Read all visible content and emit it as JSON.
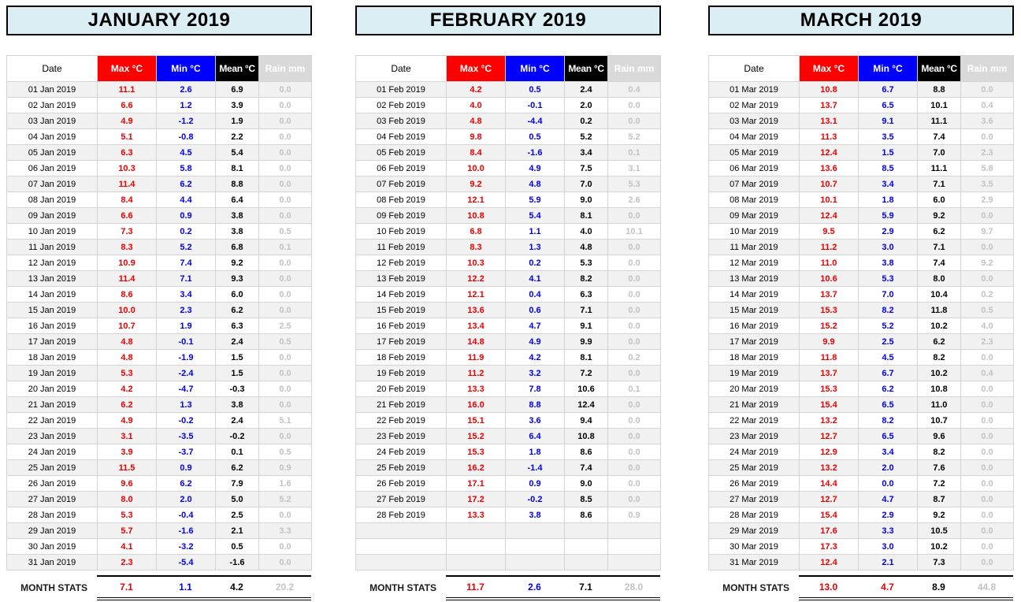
{
  "columns": [
    "Date",
    "Max °C",
    "Min °C",
    "Mean °C",
    "Rain mm"
  ],
  "colors": {
    "max_header_bg": "#FE0000",
    "min_header_bg": "#0000FE",
    "mean_header_bg": "#000000",
    "rain_header_bg": "#D9D9D9",
    "max_text": "#E90000",
    "min_text": "#0000E9",
    "mean_text": "#000000",
    "rain_text": "#C2C2C2",
    "title_bg": "#DAEEF3",
    "row_alt_bg": "#F1F1F1"
  },
  "months": [
    {
      "title": "JANUARY 2019",
      "rows": [
        [
          "01 Jan 2019",
          "11.1",
          "2.6",
          "6.9",
          "0.0"
        ],
        [
          "02 Jan 2019",
          "6.6",
          "1.2",
          "3.9",
          "0.0"
        ],
        [
          "03 Jan 2019",
          "4.9",
          "-1.2",
          "1.9",
          "0.0"
        ],
        [
          "04 Jan 2019",
          "5.1",
          "-0.8",
          "2.2",
          "0.0"
        ],
        [
          "05 Jan 2019",
          "6.3",
          "4.5",
          "5.4",
          "0.0"
        ],
        [
          "06 Jan 2019",
          "10.3",
          "5.8",
          "8.1",
          "0.0"
        ],
        [
          "07 Jan 2019",
          "11.4",
          "6.2",
          "8.8",
          "0.0"
        ],
        [
          "08 Jan 2019",
          "8.4",
          "4.4",
          "6.4",
          "0.0"
        ],
        [
          "09 Jan 2019",
          "6.6",
          "0.9",
          "3.8",
          "0.0"
        ],
        [
          "10 Jan 2019",
          "7.3",
          "0.2",
          "3.8",
          "0.5"
        ],
        [
          "11 Jan 2019",
          "8.3",
          "5.2",
          "6.8",
          "0.1"
        ],
        [
          "12 Jan 2019",
          "10.9",
          "7.4",
          "9.2",
          "0.0"
        ],
        [
          "13 Jan 2019",
          "11.4",
          "7.1",
          "9.3",
          "0.0"
        ],
        [
          "14 Jan 2019",
          "8.6",
          "3.4",
          "6.0",
          "0.0"
        ],
        [
          "15 Jan 2019",
          "10.0",
          "2.3",
          "6.2",
          "0.0"
        ],
        [
          "16 Jan 2019",
          "10.7",
          "1.9",
          "6.3",
          "2.5"
        ],
        [
          "17 Jan 2019",
          "4.8",
          "-0.1",
          "2.4",
          "0.5"
        ],
        [
          "18 Jan 2019",
          "4.8",
          "-1.9",
          "1.5",
          "0.0"
        ],
        [
          "19 Jan 2019",
          "5.3",
          "-2.4",
          "1.5",
          "0.0"
        ],
        [
          "20 Jan 2019",
          "4.2",
          "-4.7",
          "-0.3",
          "0.0"
        ],
        [
          "21 Jan 2019",
          "6.2",
          "1.3",
          "3.8",
          "0.0"
        ],
        [
          "22 Jan 2019",
          "4.9",
          "-0.2",
          "2.4",
          "5.1"
        ],
        [
          "23 Jan 2019",
          "3.1",
          "-3.5",
          "-0.2",
          "0.0"
        ],
        [
          "24 Jan 2019",
          "3.9",
          "-3.7",
          "0.1",
          "0.5"
        ],
        [
          "25 Jan 2019",
          "11.5",
          "0.9",
          "6.2",
          "0.9"
        ],
        [
          "26 Jan 2019",
          "9.6",
          "6.2",
          "7.9",
          "1.6"
        ],
        [
          "27 Jan 2019",
          "8.0",
          "2.0",
          "5.0",
          "5.2"
        ],
        [
          "28 Jan 2019",
          "5.3",
          "-0.4",
          "2.5",
          "0.0"
        ],
        [
          "29 Jan 2019",
          "5.7",
          "-1.6",
          "2.1",
          "3.3"
        ],
        [
          "30 Jan 2019",
          "4.1",
          "-3.2",
          "0.5",
          "0.0"
        ],
        [
          "31 Jan 2019",
          "2.3",
          "-5.4",
          "-1.6",
          "0.0"
        ]
      ],
      "stats_label": "MONTH STATS",
      "stats": {
        "max": "7.1",
        "min": "1.1",
        "mean": "4.2",
        "rain": "20.2",
        "min_color": "#0000E9"
      }
    },
    {
      "title": "FEBRUARY 2019",
      "rows": [
        [
          "01 Feb 2019",
          "4.2",
          "0.5",
          "2.4",
          "0.4"
        ],
        [
          "02 Feb 2019",
          "4.0",
          "-0.1",
          "2.0",
          "0.0"
        ],
        [
          "03 Feb 2019",
          "4.8",
          "-4.4",
          "0.2",
          "0.0"
        ],
        [
          "04 Feb 2019",
          "9.8",
          "0.5",
          "5.2",
          "5.2"
        ],
        [
          "05 Feb 2019",
          "8.4",
          "-1.6",
          "3.4",
          "0.1"
        ],
        [
          "06 Feb 2019",
          "10.0",
          "4.9",
          "7.5",
          "3.1"
        ],
        [
          "07 Feb 2019",
          "9.2",
          "4.8",
          "7.0",
          "5.3"
        ],
        [
          "08 Feb 2019",
          "12.1",
          "5.9",
          "9.0",
          "2.6"
        ],
        [
          "09 Feb 2019",
          "10.8",
          "5.4",
          "8.1",
          "0.0"
        ],
        [
          "10 Feb 2019",
          "6.8",
          "1.1",
          "4.0",
          "10.1"
        ],
        [
          "11 Feb 2019",
          "8.3",
          "1.3",
          "4.8",
          "0.0"
        ],
        [
          "12 Feb 2019",
          "10.3",
          "0.2",
          "5.3",
          "0.0"
        ],
        [
          "13 Feb 2019",
          "12.2",
          "4.1",
          "8.2",
          "0.0"
        ],
        [
          "14 Feb 2019",
          "12.1",
          "0.4",
          "6.3",
          "0.0"
        ],
        [
          "15 Feb 2019",
          "13.6",
          "0.6",
          "7.1",
          "0.0"
        ],
        [
          "16 Feb 2019",
          "13.4",
          "4.7",
          "9.1",
          "0.0"
        ],
        [
          "17 Feb 2019",
          "14.8",
          "4.9",
          "9.9",
          "0.0"
        ],
        [
          "18 Feb 2019",
          "11.9",
          "4.2",
          "8.1",
          "0.2"
        ],
        [
          "19 Feb 2019",
          "11.2",
          "3.2",
          "7.2",
          "0.0"
        ],
        [
          "20 Feb 2019",
          "13.3",
          "7.8",
          "10.6",
          "0.1"
        ],
        [
          "21 Feb 2019",
          "16.0",
          "8.8",
          "12.4",
          "0.0"
        ],
        [
          "22 Feb 2019",
          "15.1",
          "3.6",
          "9.4",
          "0.0"
        ],
        [
          "23 Feb 2019",
          "15.2",
          "6.4",
          "10.8",
          "0.0"
        ],
        [
          "24 Feb 2019",
          "15.3",
          "1.8",
          "8.6",
          "0.0"
        ],
        [
          "25 Feb 2019",
          "16.2",
          "-1.4",
          "7.4",
          "0.0"
        ],
        [
          "26 Feb 2019",
          "17.1",
          "0.9",
          "9.0",
          "0.0"
        ],
        [
          "27 Feb 2019",
          "17.2",
          "-0.2",
          "8.5",
          "0.0"
        ],
        [
          "28 Feb 2019",
          "13.3",
          "3.8",
          "8.6",
          "0.9"
        ],
        [
          "",
          "",
          "",
          "",
          ""
        ],
        [
          "",
          "",
          "",
          "",
          ""
        ],
        [
          "",
          "",
          "",
          "",
          ""
        ]
      ],
      "stats_label": "MONTH STATS",
      "stats": {
        "max": "11.7",
        "min": "2.6",
        "mean": "7.1",
        "rain": "28.0",
        "min_color": "#0000E9"
      }
    },
    {
      "title": "MARCH 2019",
      "rows": [
        [
          "01 Mar 2019",
          "10.8",
          "6.7",
          "8.8",
          "0.0"
        ],
        [
          "02 Mar 2019",
          "13.7",
          "6.5",
          "10.1",
          "0.4"
        ],
        [
          "03 Mar 2019",
          "13.1",
          "9.1",
          "11.1",
          "3.6"
        ],
        [
          "04 Mar 2019",
          "11.3",
          "3.5",
          "7.4",
          "0.0"
        ],
        [
          "05 Mar 2019",
          "12.4",
          "1.5",
          "7.0",
          "2.3"
        ],
        [
          "06 Mar 2019",
          "13.6",
          "8.5",
          "11.1",
          "5.8"
        ],
        [
          "07 Mar 2019",
          "10.7",
          "3.4",
          "7.1",
          "3.5"
        ],
        [
          "08 Mar 2019",
          "10.1",
          "1.8",
          "6.0",
          "2.9"
        ],
        [
          "09 Mar 2019",
          "12.4",
          "5.9",
          "9.2",
          "0.0"
        ],
        [
          "10 Mar 2019",
          "9.5",
          "2.9",
          "6.2",
          "9.7"
        ],
        [
          "11 Mar 2019",
          "11.2",
          "3.0",
          "7.1",
          "0.0"
        ],
        [
          "12 Mar 2019",
          "11.0",
          "3.8",
          "7.4",
          "9.2"
        ],
        [
          "13 Mar 2019",
          "10.6",
          "5.3",
          "8.0",
          "0.0"
        ],
        [
          "14 Mar 2019",
          "13.7",
          "7.0",
          "10.4",
          "0.2"
        ],
        [
          "15 Mar 2019",
          "15.3",
          "8.2",
          "11.8",
          "0.5"
        ],
        [
          "16 Mar 2019",
          "15.2",
          "5.2",
          "10.2",
          "4.0"
        ],
        [
          "17 Mar 2019",
          "9.9",
          "2.5",
          "6.2",
          "2.3"
        ],
        [
          "18 Mar 2019",
          "11.8",
          "4.5",
          "8.2",
          "0.0"
        ],
        [
          "19 Mar 2019",
          "13.7",
          "6.7",
          "10.2",
          "0.4"
        ],
        [
          "20 Mar 2019",
          "15.3",
          "6.2",
          "10.8",
          "0.0"
        ],
        [
          "21 Mar 2019",
          "15.4",
          "6.5",
          "11.0",
          "0.0"
        ],
        [
          "22 Mar 2019",
          "13.2",
          "8.2",
          "10.7",
          "0.0"
        ],
        [
          "23 Mar 2019",
          "12.7",
          "6.5",
          "9.6",
          "0.0"
        ],
        [
          "24 Mar 2019",
          "12.9",
          "3.4",
          "8.2",
          "0.0"
        ],
        [
          "25 Mar 2019",
          "13.2",
          "2.0",
          "7.6",
          "0.0"
        ],
        [
          "26 Mar 2019",
          "14.4",
          "0.0",
          "7.2",
          "0.0"
        ],
        [
          "27 Mar 2019",
          "12.7",
          "4.7",
          "8.7",
          "0.0"
        ],
        [
          "28 Mar 2019",
          "15.4",
          "2.9",
          "9.2",
          "0.0"
        ],
        [
          "29 Mar 2019",
          "17.6",
          "3.3",
          "10.5",
          "0.0"
        ],
        [
          "30 Mar 2019",
          "17.3",
          "3.0",
          "10.2",
          "0.0"
        ],
        [
          "31 Mar 2019",
          "12.4",
          "2.1",
          "7.3",
          "0.0"
        ]
      ],
      "stats_label": "MONTH STATS",
      "stats": {
        "max": "13.0",
        "min": "4.7",
        "mean": "8.9",
        "rain": "44.8",
        "min_color": "#E90000"
      }
    }
  ]
}
